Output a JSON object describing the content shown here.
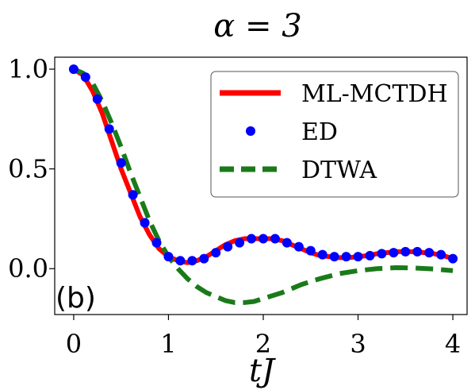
{
  "chart_data": {
    "type": "line",
    "title": "α = 3",
    "xlabel": "tJ",
    "ylabel": "",
    "panel_label": "(b)",
    "xlim": [
      -0.2,
      4.15
    ],
    "ylim": [
      -0.23,
      1.06
    ],
    "xticks": [
      0,
      1,
      2,
      3,
      4
    ],
    "yticks": [
      0.0,
      0.5,
      1.0
    ],
    "xtick_labels": [
      "0",
      "1",
      "2",
      "3",
      "4"
    ],
    "ytick_labels": [
      "0.0",
      "0.5",
      "1.0"
    ],
    "grid": false,
    "legend_position": "top-right",
    "series": [
      {
        "name": "ML-MCTDH",
        "style": "solid-line",
        "color": "#ff0000",
        "x": [
          0.0,
          0.1,
          0.2,
          0.3,
          0.4,
          0.5,
          0.6,
          0.7,
          0.8,
          0.9,
          1.0,
          1.1,
          1.2,
          1.3,
          1.4,
          1.5,
          1.6,
          1.7,
          1.8,
          1.9,
          2.0,
          2.1,
          2.2,
          2.3,
          2.4,
          2.5,
          2.6,
          2.7,
          2.8,
          2.9,
          3.0,
          3.1,
          3.2,
          3.3,
          3.4,
          3.5,
          3.6,
          3.7,
          3.8,
          3.9,
          4.0
        ],
        "y": [
          1.0,
          0.97,
          0.89,
          0.78,
          0.64,
          0.5,
          0.38,
          0.26,
          0.17,
          0.1,
          0.06,
          0.04,
          0.03,
          0.04,
          0.06,
          0.09,
          0.12,
          0.14,
          0.15,
          0.15,
          0.15,
          0.15,
          0.14,
          0.12,
          0.1,
          0.08,
          0.065,
          0.06,
          0.055,
          0.055,
          0.06,
          0.065,
          0.075,
          0.08,
          0.085,
          0.085,
          0.085,
          0.08,
          0.075,
          0.065,
          0.05
        ]
      },
      {
        "name": "ED",
        "style": "markers",
        "color": "#0000ff",
        "x": [
          0.0,
          0.125,
          0.25,
          0.375,
          0.5,
          0.625,
          0.75,
          0.875,
          1.0,
          1.125,
          1.25,
          1.375,
          1.5,
          1.625,
          1.75,
          1.875,
          2.0,
          2.125,
          2.25,
          2.375,
          2.5,
          2.625,
          2.75,
          2.875,
          3.0,
          3.125,
          3.25,
          3.375,
          3.5,
          3.625,
          3.75,
          3.875,
          4.0
        ],
        "y": [
          1.0,
          0.96,
          0.85,
          0.7,
          0.53,
          0.37,
          0.23,
          0.13,
          0.06,
          0.04,
          0.04,
          0.05,
          0.08,
          0.11,
          0.13,
          0.15,
          0.15,
          0.15,
          0.13,
          0.11,
          0.09,
          0.07,
          0.06,
          0.06,
          0.06,
          0.065,
          0.075,
          0.08,
          0.085,
          0.085,
          0.08,
          0.07,
          0.05
        ]
      },
      {
        "name": "DTWA",
        "style": "dashed-line",
        "color": "#1a7a1a",
        "x": [
          0.0,
          0.1,
          0.2,
          0.3,
          0.4,
          0.5,
          0.6,
          0.7,
          0.8,
          0.9,
          1.0,
          1.1,
          1.2,
          1.3,
          1.4,
          1.5,
          1.6,
          1.7,
          1.8,
          1.9,
          2.0,
          2.2,
          2.4,
          2.6,
          2.8,
          3.0,
          3.2,
          3.4,
          3.6,
          3.8,
          4.0
        ],
        "y": [
          1.0,
          0.98,
          0.93,
          0.84,
          0.73,
          0.61,
          0.48,
          0.36,
          0.24,
          0.14,
          0.06,
          0.0,
          -0.05,
          -0.09,
          -0.12,
          -0.14,
          -0.16,
          -0.17,
          -0.17,
          -0.165,
          -0.15,
          -0.12,
          -0.08,
          -0.05,
          -0.025,
          -0.01,
          0.0,
          0.005,
          0.003,
          -0.002,
          -0.01
        ]
      }
    ]
  }
}
